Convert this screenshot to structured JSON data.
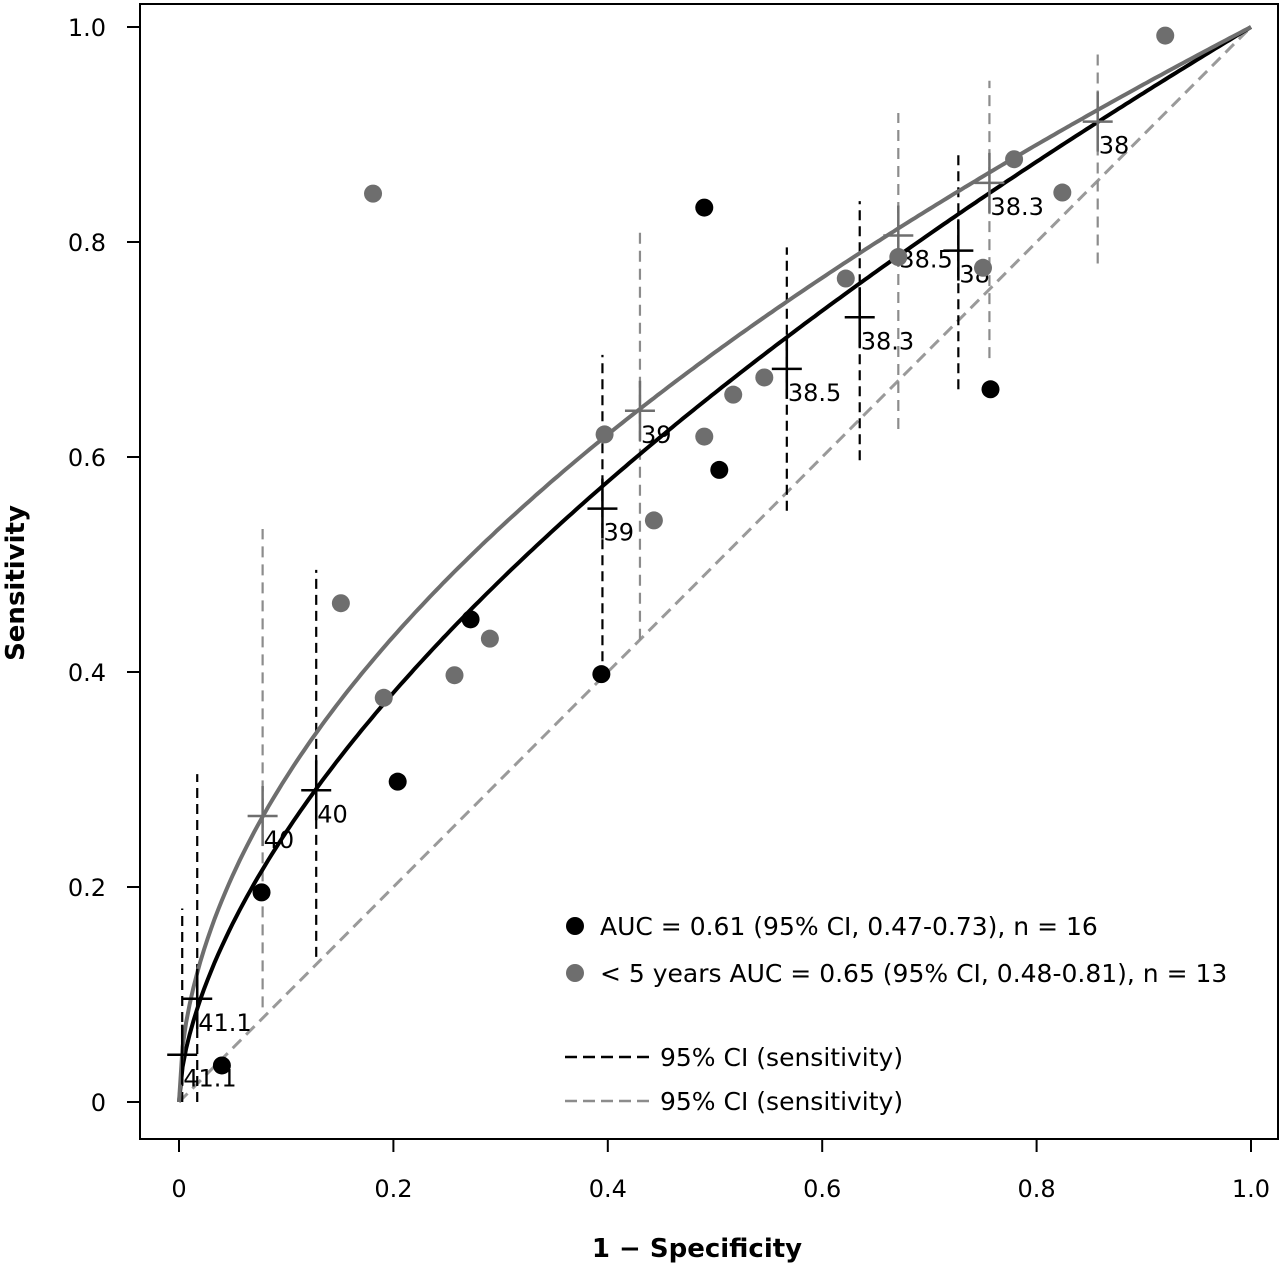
{
  "chart_data": {
    "type": "scatter",
    "xlabel": "1 − Specificity",
    "ylabel": "Sensitivity",
    "xlim": [
      0,
      1
    ],
    "ylim": [
      0,
      1
    ],
    "x_ticks": [
      0,
      0.2,
      0.4,
      0.6,
      0.8,
      1.0
    ],
    "x_tick_labels": [
      "0",
      "0.2",
      "0.4",
      "0.6",
      "0.8",
      "1.0"
    ],
    "y_ticks": [
      0,
      0.2,
      0.4,
      0.6,
      0.8,
      1.0
    ],
    "y_tick_labels": [
      "0",
      "0.2",
      "0.4",
      "0.6",
      "0.8",
      "1.0"
    ],
    "grid": false,
    "legend_position": "bottom-right",
    "colors": {
      "all": "#000000",
      "under5": "#6e6e6e",
      "ci_all": "#000000",
      "ci_under5": "#8c8c8c",
      "diagonal": "#9a9a9a"
    },
    "series": [
      {
        "key": "all",
        "name": "AUC = 0.61 (95% CI, 0.47-0.73), n = 16",
        "color": "#000000",
        "points": [
          {
            "x": 0.04,
            "y": 0.034
          },
          {
            "x": 0.077,
            "y": 0.195
          },
          {
            "x": 0.204,
            "y": 0.298
          },
          {
            "x": 0.272,
            "y": 0.449
          },
          {
            "x": 0.394,
            "y": 0.398
          },
          {
            "x": 0.49,
            "y": 0.832
          },
          {
            "x": 0.504,
            "y": 0.588
          },
          {
            "x": 0.757,
            "y": 0.663
          }
        ]
      },
      {
        "key": "under5",
        "name": "< 5 years AUC = 0.65 (95% CI, 0.48-0.81), n = 13",
        "color": "#6e6e6e",
        "points": [
          {
            "x": 0.151,
            "y": 0.464
          },
          {
            "x": 0.181,
            "y": 0.845
          },
          {
            "x": 0.191,
            "y": 0.376
          },
          {
            "x": 0.257,
            "y": 0.397
          },
          {
            "x": 0.29,
            "y": 0.431
          },
          {
            "x": 0.397,
            "y": 0.621
          },
          {
            "x": 0.443,
            "y": 0.541
          },
          {
            "x": 0.49,
            "y": 0.619
          },
          {
            "x": 0.517,
            "y": 0.658
          },
          {
            "x": 0.546,
            "y": 0.674
          },
          {
            "x": 0.622,
            "y": 0.766
          },
          {
            "x": 0.671,
            "y": 0.786
          },
          {
            "x": 0.75,
            "y": 0.776
          },
          {
            "x": 0.779,
            "y": 0.877
          },
          {
            "x": 0.824,
            "y": 0.846
          },
          {
            "x": 0.92,
            "y": 0.992
          }
        ]
      }
    ],
    "fitted_curves": [
      {
        "key": "all",
        "exponent": 0.6
      },
      {
        "key": "under5",
        "exponent": 0.52
      }
    ],
    "thresholds": [
      {
        "series": "all",
        "label": "41.1",
        "x": 0.003,
        "y": 0.044,
        "ci_low": 0.0,
        "ci_high": 0.18
      },
      {
        "series": "all",
        "label": "40",
        "x": 0.128,
        "y": 0.29,
        "ci_low": 0.135,
        "ci_high": 0.495
      },
      {
        "series": "all",
        "label": "39",
        "x": 0.395,
        "y": 0.552,
        "ci_low": 0.41,
        "ci_high": 0.695
      },
      {
        "series": "all",
        "label": "38.5",
        "x": 0.567,
        "y": 0.682,
        "ci_low": 0.55,
        "ci_high": 0.795
      },
      {
        "series": "all",
        "label": "38.3",
        "x": 0.635,
        "y": 0.73,
        "ci_low": 0.597,
        "ci_high": 0.838
      },
      {
        "series": "all",
        "label": "38",
        "x": 0.727,
        "y": 0.792,
        "ci_low": 0.663,
        "ci_high": 0.885
      },
      {
        "series": "all",
        "label": "41.1",
        "x": 0.017,
        "y": 0.096,
        "ci_low": 0.0,
        "ci_high": 0.305
      },
      {
        "series": "under5",
        "label": "40",
        "x": 0.078,
        "y": 0.266,
        "ci_low": 0.088,
        "ci_high": 0.533
      },
      {
        "series": "under5",
        "label": "39",
        "x": 0.43,
        "y": 0.643,
        "ci_low": 0.43,
        "ci_high": 0.815
      },
      {
        "series": "under5",
        "label": "38.5",
        "x": 0.671,
        "y": 0.806,
        "ci_low": 0.626,
        "ci_high": 0.92
      },
      {
        "series": "under5",
        "label": "38.3",
        "x": 0.756,
        "y": 0.855,
        "ci_low": 0.692,
        "ci_high": 0.95
      },
      {
        "series": "under5",
        "label": "38",
        "x": 0.857,
        "y": 0.912,
        "ci_low": 0.78,
        "ci_high": 0.975
      }
    ],
    "legend_lines": [
      {
        "label": "95% CI (sensitivity)",
        "color": "#000000",
        "dashed": true
      },
      {
        "label": "95% CI (sensitivity)",
        "color": "#8c8c8c",
        "dashed": true
      }
    ]
  }
}
